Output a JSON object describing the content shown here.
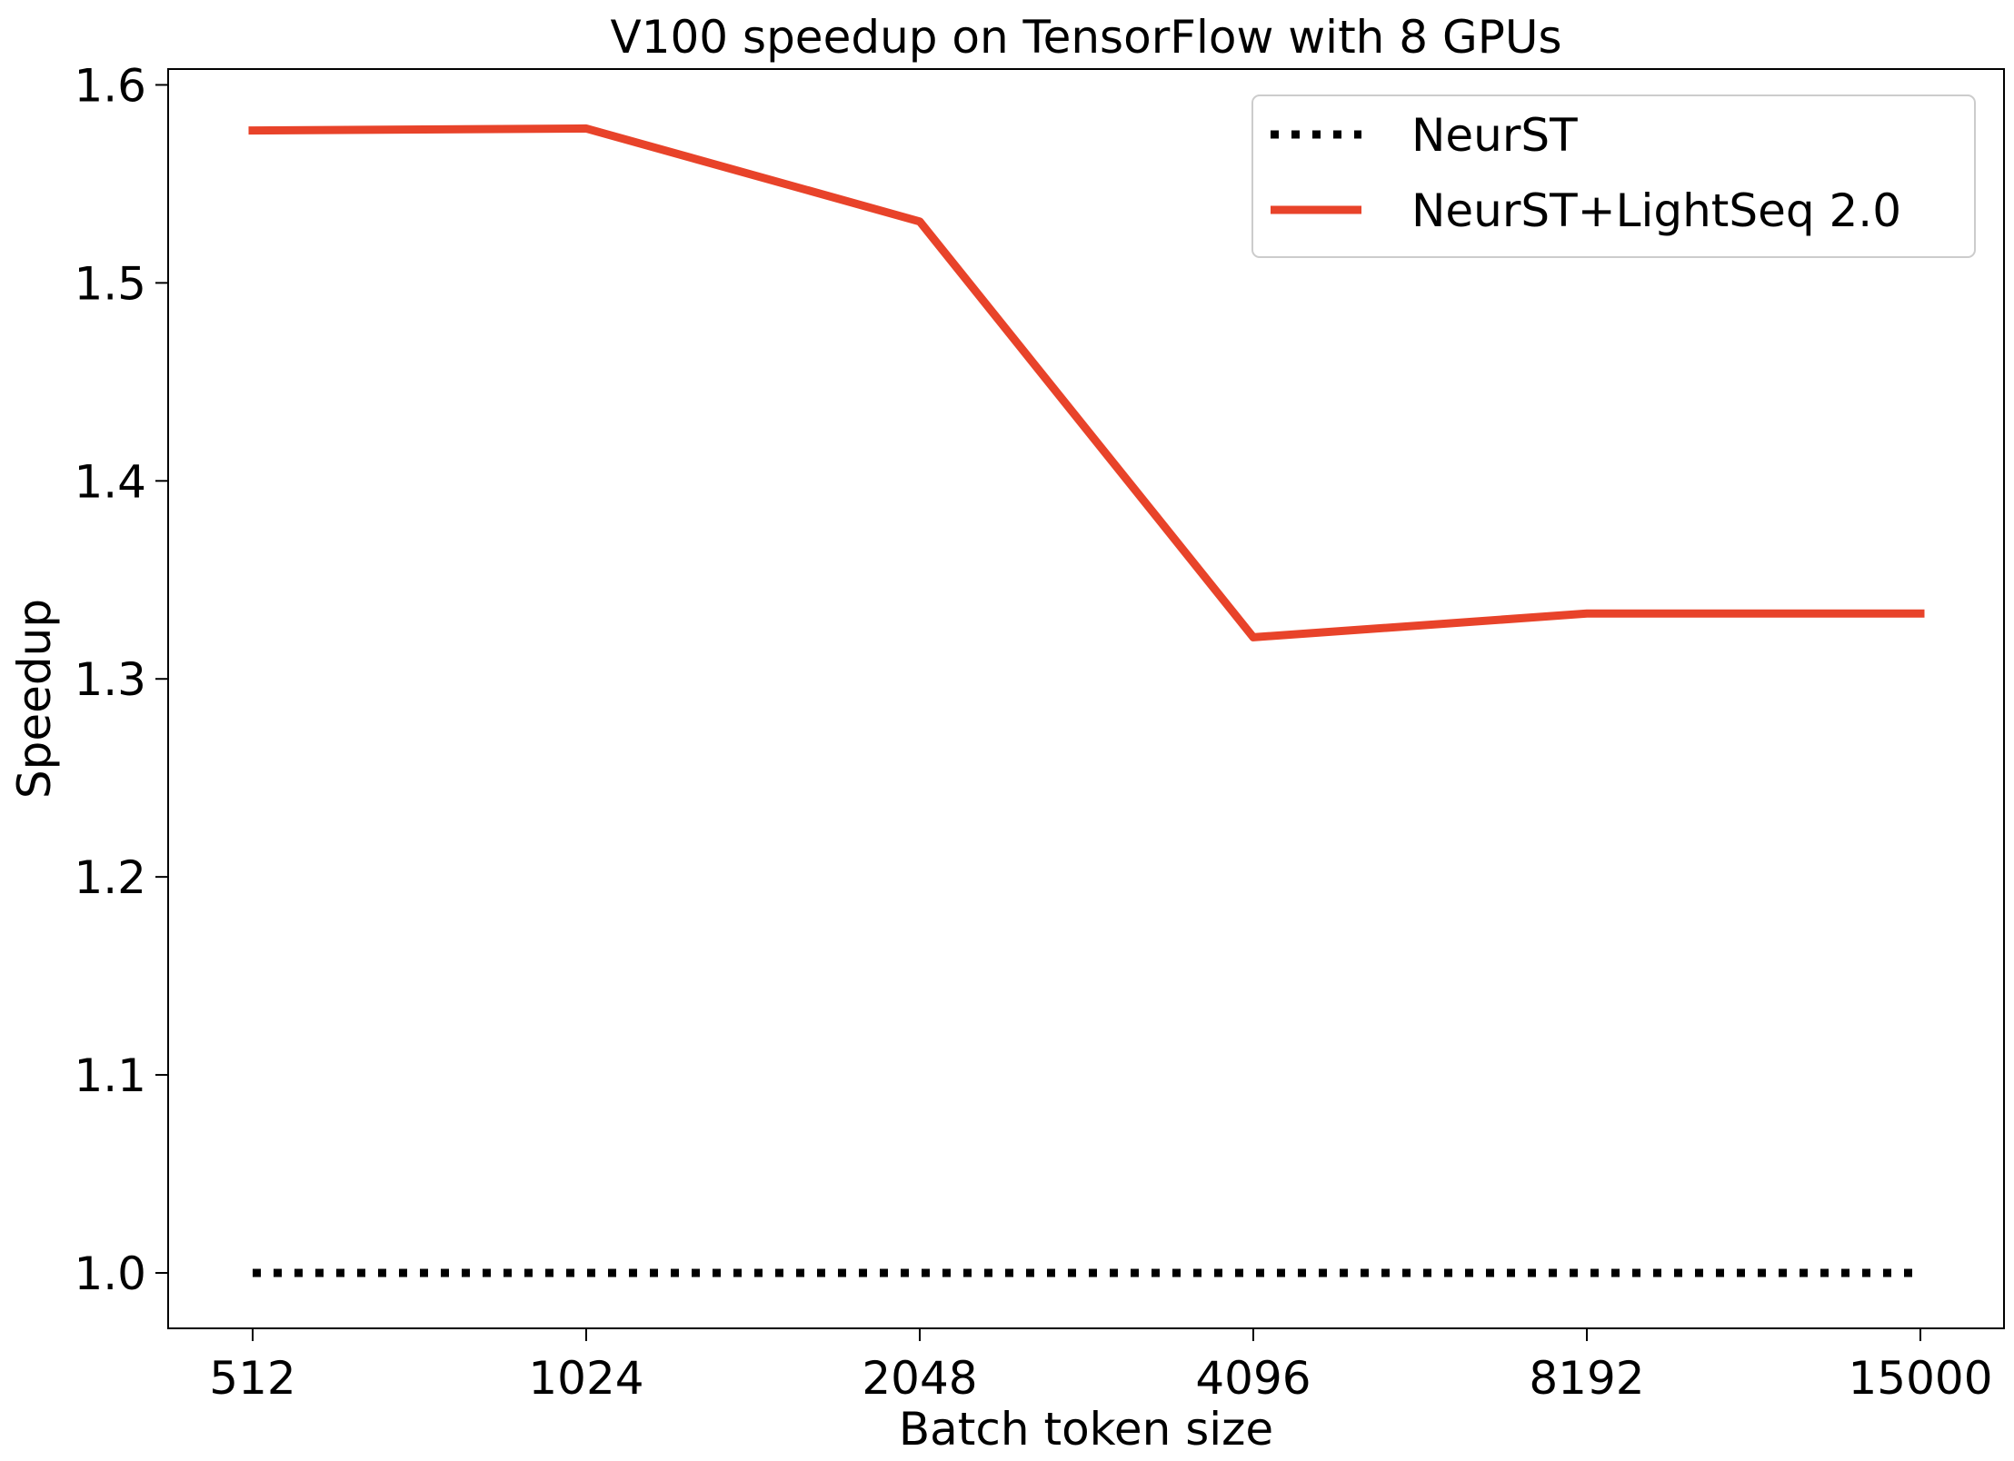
{
  "chart_data": {
    "type": "line",
    "title": "V100 speedup on TensorFlow with 8 GPUs",
    "xlabel": "Batch token size",
    "ylabel": "Speedup",
    "categories": [
      "512",
      "1024",
      "2048",
      "4096",
      "8192",
      "15000"
    ],
    "ylim": [
      0.972,
      1.608
    ],
    "yticks": [
      "1.0",
      "1.1",
      "1.2",
      "1.3",
      "1.4",
      "1.5",
      "1.6"
    ],
    "grid": false,
    "legend_position": "top-right",
    "series": [
      {
        "name": "NeurST",
        "values": [
          1.0,
          1.0,
          1.0,
          1.0,
          1.0,
          1.0
        ],
        "color": "#000000",
        "style": "dotted"
      },
      {
        "name": "NeurST+LightSeq 2.0",
        "values": [
          1.577,
          1.578,
          1.531,
          1.321,
          1.333,
          1.333
        ],
        "color": "#e8432a",
        "style": "solid"
      }
    ]
  }
}
